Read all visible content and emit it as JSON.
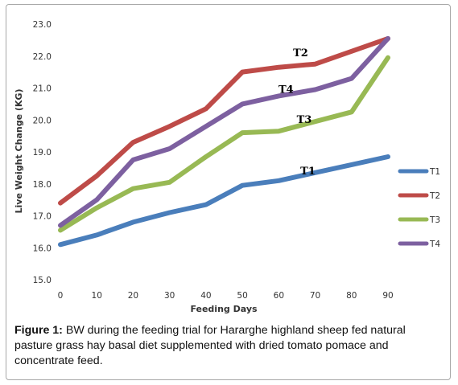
{
  "chart_data": {
    "type": "line",
    "x": [
      0,
      10,
      20,
      30,
      40,
      50,
      60,
      70,
      80,
      90
    ],
    "xticks": [
      "0",
      "10",
      "20",
      "30",
      "40",
      "50",
      "60",
      "70",
      "80",
      "90"
    ],
    "yticks": [
      "15.0",
      "16.0",
      "17.0",
      "18.0",
      "19.0",
      "20.0",
      "21.0",
      "22.0",
      "23.0"
    ],
    "xlim": [
      0,
      90
    ],
    "ylim": [
      15.0,
      23.0
    ],
    "xlabel": "Feeding Days",
    "ylabel": "Live Weight Change (KG)",
    "grid": false,
    "legend_position": "right",
    "series": [
      {
        "name": "T1",
        "color": "#4a7ebb",
        "values": [
          16.1,
          16.4,
          16.8,
          17.1,
          17.35,
          17.95,
          18.1,
          18.35,
          18.6,
          18.85
        ]
      },
      {
        "name": "T2",
        "color": "#be4b48",
        "values": [
          17.4,
          18.25,
          19.3,
          19.8,
          20.35,
          21.5,
          21.65,
          21.75,
          22.15,
          22.55
        ]
      },
      {
        "name": "T3",
        "color": "#98b954",
        "values": [
          16.55,
          17.25,
          17.85,
          18.05,
          18.85,
          19.6,
          19.65,
          19.95,
          20.25,
          21.95
        ]
      },
      {
        "name": "T4",
        "color": "#7d60a0",
        "values": [
          16.7,
          17.5,
          18.75,
          19.1,
          19.8,
          20.5,
          20.75,
          20.95,
          21.3,
          22.55
        ]
      }
    ],
    "annotations": [
      {
        "text": "T2",
        "x": 66,
        "y": 22.0
      },
      {
        "text": "T4",
        "x": 62,
        "y": 20.85
      },
      {
        "text": "T3",
        "x": 67,
        "y": 19.9
      },
      {
        "text": "T1",
        "x": 68,
        "y": 18.3
      }
    ]
  },
  "caption": {
    "label": "Figure 1:",
    "text": " BW during the feeding trial for Hararghe highland sheep fed natural pasture grass hay basal diet supplemented with dried tomato pomace and concentrate feed."
  }
}
